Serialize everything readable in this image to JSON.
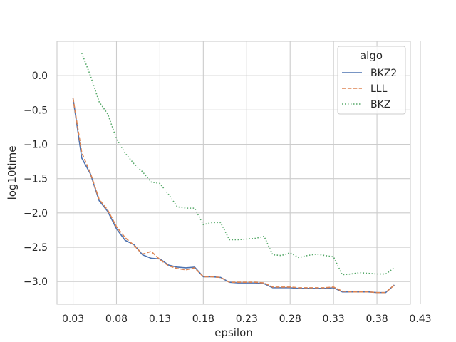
{
  "chart_data": {
    "type": "line",
    "xlabel": "epsilon",
    "ylabel": "log10time",
    "xlim": [
      0.0115,
      0.4185
    ],
    "ylim": [
      -3.33,
      0.5
    ],
    "xticks": [
      0.03,
      0.08,
      0.13,
      0.18,
      0.23,
      0.28,
      0.33,
      0.38,
      0.43
    ],
    "xtick_labels": [
      "0.03",
      "0.08",
      "0.13",
      "0.18",
      "0.23",
      "0.28",
      "0.33",
      "0.38",
      "0.43"
    ],
    "yticks": [
      0.0,
      -0.5,
      -1.0,
      -1.5,
      -2.0,
      -2.5,
      -3.0
    ],
    "ytick_labels": [
      "0.0",
      "−0.5",
      "−1.0",
      "−1.5",
      "−2.0",
      "−2.5",
      "−3.0"
    ],
    "grid": true,
    "legend": {
      "title": "algo",
      "position": "top-right"
    },
    "series": [
      {
        "name": "BKZ2",
        "color": "#4c72b0",
        "dash": "solid",
        "x": [
          0.03,
          0.04,
          0.05,
          0.06,
          0.07,
          0.08,
          0.09,
          0.1,
          0.11,
          0.12,
          0.13,
          0.14,
          0.15,
          0.16,
          0.17,
          0.18,
          0.19,
          0.2,
          0.21,
          0.22,
          0.23,
          0.24,
          0.25,
          0.26,
          0.27,
          0.28,
          0.29,
          0.3,
          0.31,
          0.32,
          0.33,
          0.34,
          0.35,
          0.36,
          0.37,
          0.38,
          0.39,
          0.4
        ],
        "y": [
          -0.33,
          -1.2,
          -1.43,
          -1.82,
          -1.98,
          -2.23,
          -2.4,
          -2.46,
          -2.61,
          -2.66,
          -2.67,
          -2.76,
          -2.79,
          -2.8,
          -2.79,
          -2.93,
          -2.93,
          -2.94,
          -3.01,
          -3.02,
          -3.02,
          -3.02,
          -3.03,
          -3.09,
          -3.09,
          -3.09,
          -3.1,
          -3.1,
          -3.1,
          -3.1,
          -3.09,
          -3.15,
          -3.15,
          -3.15,
          -3.15,
          -3.16,
          -3.16,
          -3.05
        ]
      },
      {
        "name": "LLL",
        "color": "#dd8452",
        "dash": "dashed",
        "x": [
          0.03,
          0.04,
          0.05,
          0.06,
          0.07,
          0.08,
          0.09,
          0.1,
          0.11,
          0.12,
          0.13,
          0.14,
          0.15,
          0.16,
          0.17,
          0.18,
          0.19,
          0.2,
          0.21,
          0.22,
          0.23,
          0.24,
          0.25,
          0.26,
          0.27,
          0.28,
          0.29,
          0.3,
          0.31,
          0.32,
          0.33,
          0.34,
          0.35,
          0.36,
          0.37,
          0.38,
          0.39,
          0.4
        ],
        "y": [
          -0.33,
          -1.12,
          -1.42,
          -1.8,
          -1.96,
          -2.2,
          -2.36,
          -2.47,
          -2.6,
          -2.56,
          -2.68,
          -2.77,
          -2.81,
          -2.83,
          -2.8,
          -2.93,
          -2.93,
          -2.94,
          -3.01,
          -3.01,
          -3.01,
          -3.01,
          -3.02,
          -3.08,
          -3.08,
          -3.08,
          -3.09,
          -3.09,
          -3.09,
          -3.09,
          -3.08,
          -3.14,
          -3.15,
          -3.15,
          -3.15,
          -3.16,
          -3.16,
          -3.05
        ]
      },
      {
        "name": "BKZ",
        "color": "#55a868",
        "dash": "dotted",
        "x": [
          0.04,
          0.05,
          0.06,
          0.07,
          0.08,
          0.09,
          0.1,
          0.11,
          0.12,
          0.13,
          0.14,
          0.15,
          0.16,
          0.17,
          0.18,
          0.19,
          0.2,
          0.21,
          0.22,
          0.23,
          0.24,
          0.25,
          0.26,
          0.27,
          0.28,
          0.29,
          0.3,
          0.31,
          0.32,
          0.33,
          0.34,
          0.35,
          0.36,
          0.37,
          0.38,
          0.39,
          0.4
        ],
        "y": [
          0.33,
          0.0,
          -0.38,
          -0.56,
          -0.92,
          -1.13,
          -1.28,
          -1.4,
          -1.55,
          -1.57,
          -1.73,
          -1.91,
          -1.93,
          -1.93,
          -2.17,
          -2.14,
          -2.14,
          -2.39,
          -2.39,
          -2.38,
          -2.37,
          -2.34,
          -2.61,
          -2.62,
          -2.58,
          -2.65,
          -2.62,
          -2.6,
          -2.62,
          -2.64,
          -2.9,
          -2.89,
          -2.87,
          -2.88,
          -2.89,
          -2.89,
          -2.8
        ]
      }
    ]
  }
}
